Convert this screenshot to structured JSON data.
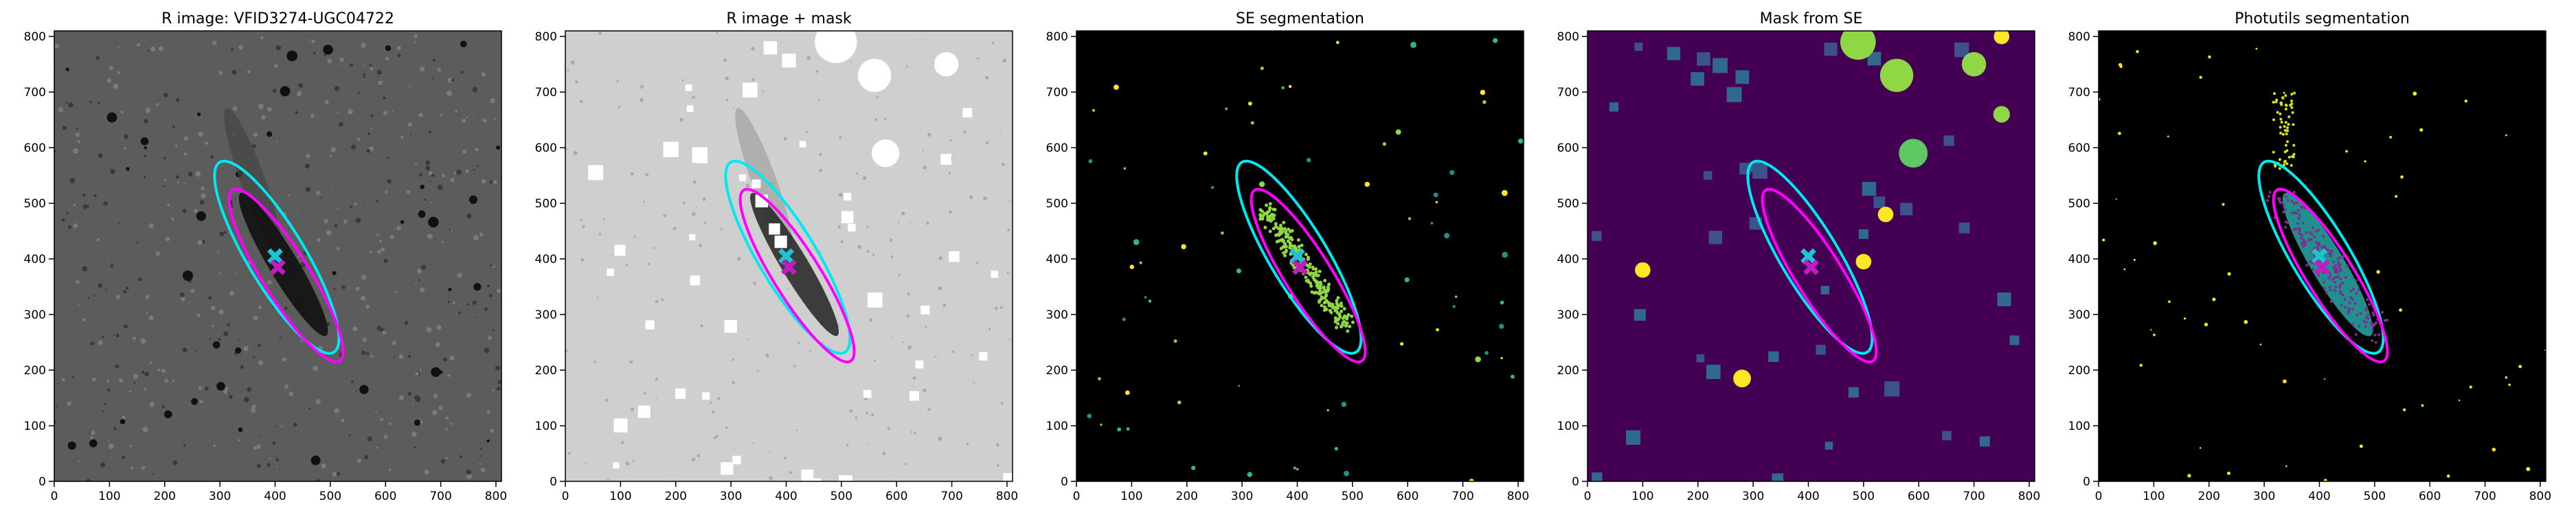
{
  "chart_data": [
    {
      "type": "image",
      "title": "R image: VFID3274-UGC04722",
      "background": "#5c5c5c",
      "xlim": [
        0,
        810
      ],
      "ylim": [
        0,
        810
      ],
      "xticks": [
        0,
        100,
        200,
        300,
        400,
        500,
        600,
        700,
        800
      ],
      "yticks": [
        0,
        100,
        200,
        300,
        400,
        500,
        600,
        700,
        800
      ],
      "ellipses": [
        {
          "color": "#00e8f0",
          "cx": 403,
          "cy": 403,
          "a": 200,
          "b": 52,
          "angle": -59
        },
        {
          "color": "#ff00ff",
          "cx": 420,
          "cy": 370,
          "a": 182,
          "b": 42,
          "angle": -58
        }
      ],
      "markers": [
        {
          "color": "#1cc4d4",
          "x": 400,
          "y": 405
        },
        {
          "color": "#c01cc0",
          "x": 405,
          "y": 385
        }
      ]
    },
    {
      "type": "image",
      "title": "R image + mask",
      "background": "#cfcfcf",
      "xlim": [
        0,
        810
      ],
      "ylim": [
        0,
        810
      ],
      "xticks": [
        0,
        100,
        200,
        300,
        400,
        500,
        600,
        700,
        800
      ],
      "yticks": [
        0,
        100,
        200,
        300,
        400,
        500,
        600,
        700,
        800
      ],
      "ellipses": [
        {
          "color": "#00e8f0",
          "cx": 403,
          "cy": 403,
          "a": 200,
          "b": 52,
          "angle": -59
        },
        {
          "color": "#ff00ff",
          "cx": 420,
          "cy": 370,
          "a": 182,
          "b": 42,
          "angle": -58
        }
      ],
      "markers": [
        {
          "color": "#1cc4d4",
          "x": 400,
          "y": 405
        },
        {
          "color": "#c01cc0",
          "x": 405,
          "y": 385
        }
      ]
    },
    {
      "type": "image",
      "title": "SE segmentation",
      "background": "#000000",
      "xlim": [
        0,
        810
      ],
      "ylim": [
        0,
        810
      ],
      "xticks": [
        0,
        100,
        200,
        300,
        400,
        500,
        600,
        700,
        800
      ],
      "yticks": [
        0,
        100,
        200,
        300,
        400,
        500,
        600,
        700,
        800
      ],
      "ellipses": [
        {
          "color": "#00e8f0",
          "cx": 403,
          "cy": 403,
          "a": 200,
          "b": 52,
          "angle": -59
        },
        {
          "color": "#ff00ff",
          "cx": 420,
          "cy": 370,
          "a": 182,
          "b": 42,
          "angle": -58
        }
      ],
      "markers": [
        {
          "color": "#1cc4d4",
          "x": 400,
          "y": 405
        },
        {
          "color": "#c01cc0",
          "x": 405,
          "y": 385
        }
      ]
    },
    {
      "type": "image",
      "title": "Mask from SE",
      "background": "#440154",
      "xlim": [
        0,
        810
      ],
      "ylim": [
        0,
        810
      ],
      "xticks": [
        0,
        100,
        200,
        300,
        400,
        500,
        600,
        700,
        800
      ],
      "yticks": [
        0,
        100,
        200,
        300,
        400,
        500,
        600,
        700,
        800
      ],
      "ellipses": [
        {
          "color": "#00e8f0",
          "cx": 403,
          "cy": 403,
          "a": 200,
          "b": 52,
          "angle": -59
        },
        {
          "color": "#ff00ff",
          "cx": 420,
          "cy": 370,
          "a": 182,
          "b": 42,
          "angle": -58
        }
      ],
      "markers": [
        {
          "color": "#1cc4d4",
          "x": 400,
          "y": 405
        },
        {
          "color": "#c01cc0",
          "x": 405,
          "y": 385
        }
      ]
    },
    {
      "type": "image",
      "title": "Photutils segmentation",
      "background": "#000000",
      "xlim": [
        0,
        810
      ],
      "ylim": [
        0,
        810
      ],
      "xticks": [
        0,
        100,
        200,
        300,
        400,
        500,
        600,
        700,
        800
      ],
      "yticks": [
        0,
        100,
        200,
        300,
        400,
        500,
        600,
        700,
        800
      ],
      "ellipses": [
        {
          "color": "#00e8f0",
          "cx": 403,
          "cy": 403,
          "a": 200,
          "b": 52,
          "angle": -59
        },
        {
          "color": "#ff00ff",
          "cx": 420,
          "cy": 370,
          "a": 182,
          "b": 42,
          "angle": -58
        }
      ],
      "markers": [
        {
          "color": "#1cc4d4",
          "x": 400,
          "y": 405
        },
        {
          "color": "#c01cc0",
          "x": 405,
          "y": 385
        }
      ]
    }
  ]
}
